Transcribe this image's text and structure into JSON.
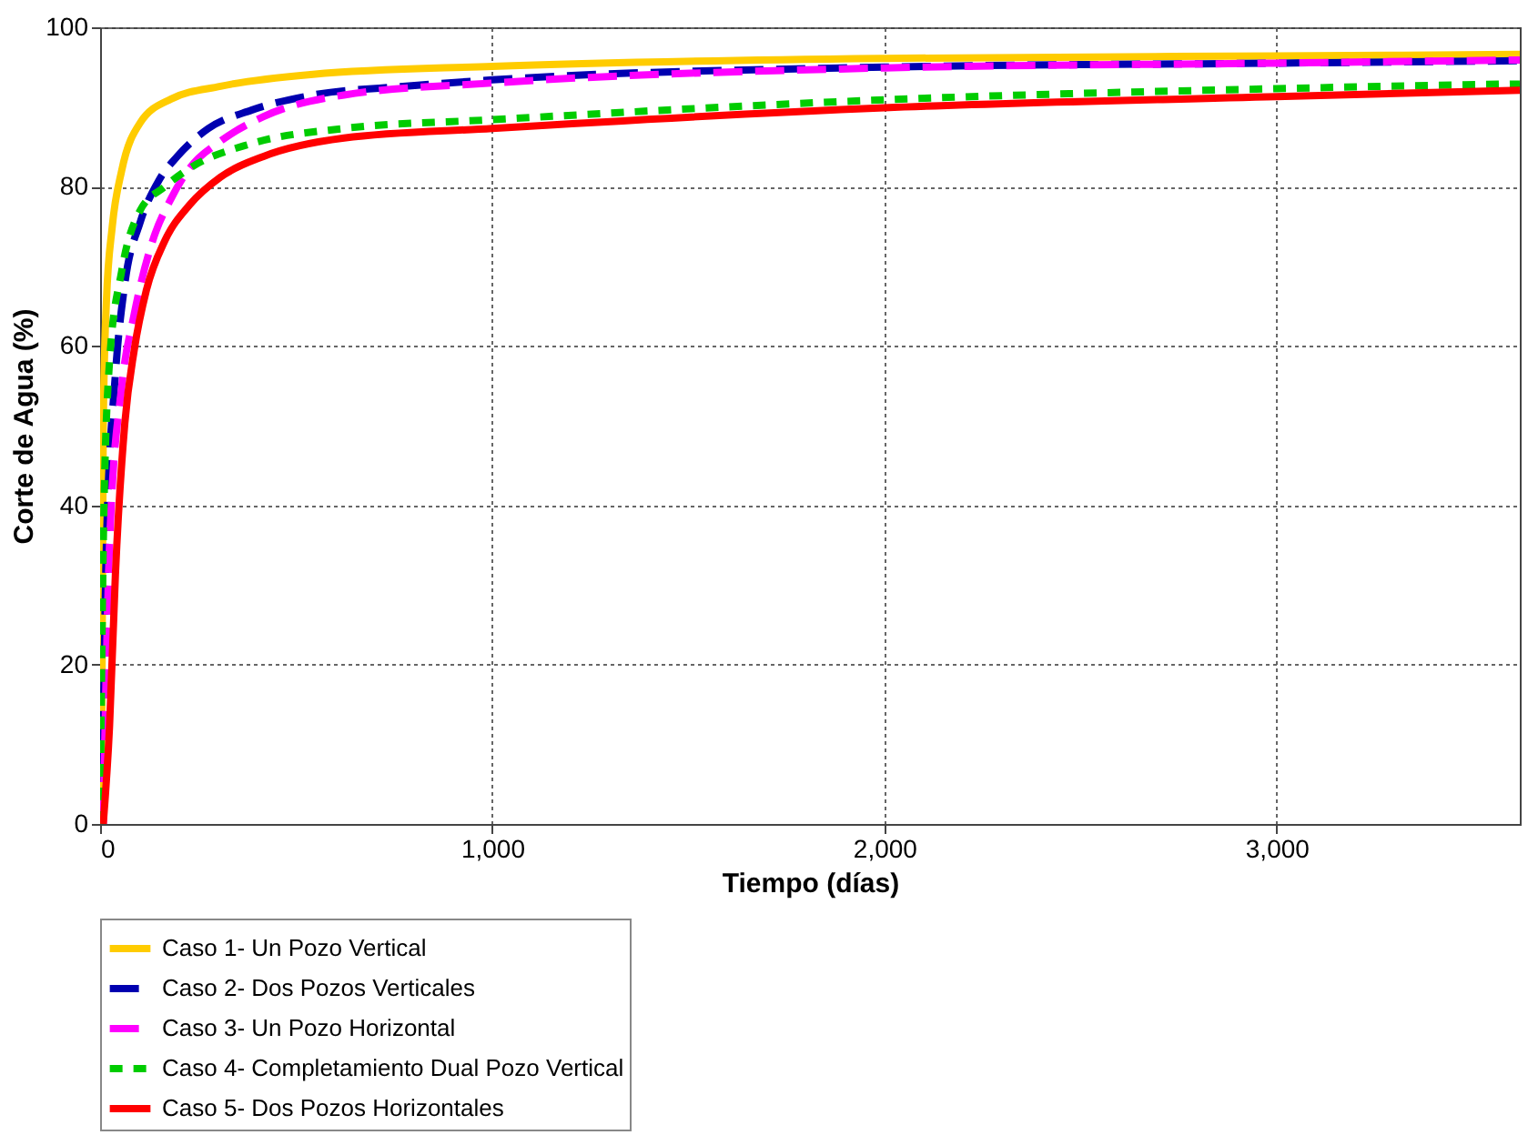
{
  "chart_data": {
    "type": "line",
    "xlabel": "Tiempo (días)",
    "ylabel": "Corte de Agua (%)",
    "xlim": [
      0,
      3620
    ],
    "xticks": [
      0,
      {
        "value": 1000,
        "label": "1,000"
      },
      {
        "value": 2000,
        "label": "2,000"
      },
      {
        "value": 3000,
        "label": "3,000"
      }
    ],
    "ylim": [
      0,
      100
    ],
    "yticks": [
      0,
      20,
      40,
      60,
      80,
      100
    ],
    "grid": true,
    "legend": "bottom",
    "marker": "none",
    "series": [
      {
        "name": "Caso 1- Un Pozo Vertical",
        "color": "#ffcc00",
        "line_style": "solid",
        "x": [
          3,
          8,
          16,
          31,
          55,
          102,
          181,
          307,
          543,
          1000,
          2000,
          3000,
          3620
        ],
        "values": [
          0,
          50,
          65.5,
          75,
          82,
          88,
          91,
          92.6,
          94.1,
          95.1,
          96.1,
          96.4,
          96.6
        ]
      },
      {
        "name": "Caso 2- Dos Pozos Verticales",
        "color": "#0000b0",
        "line_style": "dashed",
        "x": [
          5,
          16,
          39,
          63,
          102,
          150,
          197,
          276,
          386,
          543,
          780,
          1000,
          2000,
          3000,
          3620
        ],
        "values": [
          0,
          35,
          56.4,
          67.8,
          75.5,
          80.8,
          83.8,
          87.3,
          89.6,
          91.5,
          92.6,
          93.4,
          95,
          95.5,
          95.8
        ]
      },
      {
        "name": "Caso 3- Un Pozo Horizontal",
        "color": "#ff00ff",
        "line_style": "dashed",
        "x": [
          8,
          24,
          55,
          87,
          134,
          181,
          228,
          307,
          417,
          622,
          1000,
          2000,
          3000,
          3620
        ],
        "values": [
          0,
          35,
          54.9,
          64,
          73.2,
          78.5,
          82.3,
          85.7,
          88.8,
          91.5,
          93,
          94.9,
          95.5,
          95.9
        ]
      },
      {
        "name": "Caso 4- Completamiento Dual Pozo Vertical",
        "color": "#00cc00",
        "line_style": "dotted",
        "x": [
          0,
          8,
          24,
          55,
          102,
          165,
          228,
          386,
          622,
          1000,
          2000,
          3000,
          3620
        ],
        "values": [
          0,
          35,
          58,
          69.4,
          77,
          80,
          82.3,
          85.4,
          87.3,
          88.4,
          90.9,
          92.3,
          92.9
        ]
      },
      {
        "name": "Caso 5- Dos Pozos Horizontales",
        "color": "#ff0000",
        "line_style": "solid",
        "x": [
          8,
          24,
          39,
          63,
          87,
          118,
          165,
          228,
          307,
          417,
          622,
          1000,
          2000,
          3000,
          3620
        ],
        "values": [
          0,
          12.2,
          31.3,
          50.3,
          59.5,
          67,
          73.2,
          77.7,
          81.2,
          83.8,
          86.1,
          87.3,
          89.9,
          91.3,
          92.1
        ]
      }
    ]
  }
}
